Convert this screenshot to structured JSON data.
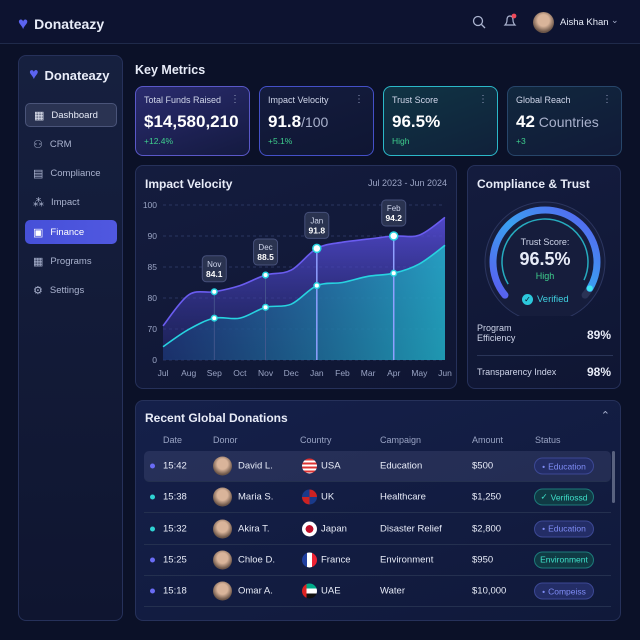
{
  "header": {
    "brand": "Donateazy",
    "user": "Aisha Khan"
  },
  "sidebar": {
    "brand": "Donateazy",
    "items": [
      {
        "label": "Dashboard",
        "icon": "grid-icon",
        "state": "selected"
      },
      {
        "label": "CRM",
        "icon": "users-icon"
      },
      {
        "label": "Compliance",
        "icon": "document-icon"
      },
      {
        "label": "Impact",
        "icon": "network-icon"
      },
      {
        "label": "Finance",
        "icon": "wallet-icon",
        "state": "active"
      },
      {
        "label": "Programs",
        "icon": "grid-icon"
      },
      {
        "label": "Settings",
        "icon": "gear-icon"
      }
    ]
  },
  "main": {
    "title": "Key Metrics",
    "metrics": [
      {
        "title": "Total Funds Raised",
        "value": "$14,580,210",
        "suffix": "",
        "delta": "+12.4%"
      },
      {
        "title": "Impact Velocity",
        "value": "91.8",
        "suffix": "/100",
        "delta": "+5.1%"
      },
      {
        "title": "Trust Score",
        "value": "96.5%",
        "suffix": "",
        "delta": "High"
      },
      {
        "title": "Global Reach",
        "value": "42",
        "suffix": " Countries",
        "delta": "+3"
      }
    ]
  },
  "chart_data": {
    "type": "area",
    "title": "Impact Velocity",
    "subtitle": "Jul 2023 - Jun 2024",
    "categories": [
      "Jul",
      "Aug",
      "Sep",
      "Oct",
      "Nov",
      "Dec",
      "Jan",
      "Feb",
      "Mar",
      "Apr",
      "May",
      "Jun"
    ],
    "yticks": [
      0,
      70,
      80,
      85,
      90,
      100
    ],
    "series": [
      {
        "values": [
          71,
          80.5,
          81,
          82,
          83.7,
          84.5,
          88,
          89,
          89.5,
          90,
          90.3,
          96
        ],
        "color": "#6a5cf0"
      },
      {
        "values": [
          30,
          69,
          73.5,
          73.5,
          77,
          78,
          82,
          82.5,
          83.5,
          84,
          85.5,
          88.5
        ],
        "color": "#27d3e0"
      }
    ],
    "annotations": [
      {
        "month": "Nov",
        "value": "84.1",
        "at": "Sep"
      },
      {
        "month": "Dec",
        "value": "88.5",
        "at": "Nov"
      },
      {
        "month": "Jan",
        "value": "91.8",
        "at": "Jan"
      },
      {
        "month": "Feb",
        "value": "94.2",
        "at": "Apr"
      }
    ],
    "grid": true
  },
  "compliance": {
    "title": "Compliance & Trust",
    "gauge_label": "Trust Score:",
    "gauge_value": "96.5%",
    "gauge_fraction": 0.965,
    "gauge_status": "High",
    "verified": "Verified",
    "rows": [
      {
        "label": "Program Efficiency",
        "value": "89%"
      },
      {
        "label": "Transparency Index",
        "value": "98%"
      }
    ]
  },
  "donations": {
    "title": "Recent Global Donations",
    "columns": [
      "Date",
      "Donor",
      "Country",
      "Campaign",
      "Amount",
      "Status"
    ],
    "rows": [
      {
        "time": "15:42",
        "donor": "David L.",
        "country": "USA",
        "campaign": "Education",
        "amount": "$500",
        "status": "Education",
        "style": "blue",
        "dot": "#6a6cf5"
      },
      {
        "time": "15:38",
        "donor": "Maria S.",
        "country": "UK",
        "campaign": "Healthcare",
        "amount": "$1,250",
        "status": "Verifiossd",
        "style": "teal",
        "check": true,
        "dot": "#2fd3d3"
      },
      {
        "time": "15:32",
        "donor": "Akira T.",
        "country": "Japan",
        "campaign": "Disaster Relief",
        "amount": "$2,800",
        "status": "Education",
        "style": "blue",
        "dot": "#2fd3d3"
      },
      {
        "time": "15:25",
        "donor": "Chloe D.",
        "country": "France",
        "campaign": "Environment",
        "amount": "$950",
        "status": "Environment",
        "style": "teal",
        "dot": "#6a6cf5"
      },
      {
        "time": "15:18",
        "donor": "Omar A.",
        "country": "UAE",
        "campaign": "Water",
        "amount": "$10,000",
        "status": "Compeiss",
        "style": "blue",
        "dot": "#6a6cf5"
      }
    ]
  }
}
